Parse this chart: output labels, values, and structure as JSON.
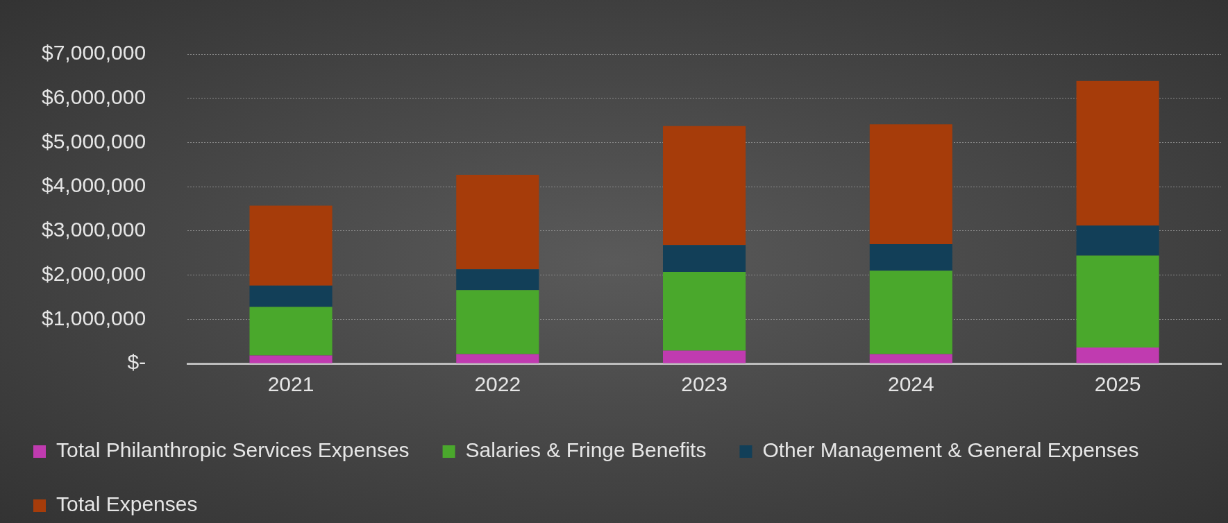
{
  "chart_data": {
    "type": "bar",
    "stacked": true,
    "categories": [
      "2021",
      "2022",
      "2023",
      "2024",
      "2025"
    ],
    "series": [
      {
        "name": "Total Philanthropic Services Expenses",
        "color": "#c03bb0",
        "values": [
          180000,
          210000,
          290000,
          210000,
          360000
        ]
      },
      {
        "name": "Salaries & Fringe Benefits",
        "color": "#4aa82c",
        "values": [
          1100000,
          1450000,
          1780000,
          1890000,
          2080000
        ]
      },
      {
        "name": "Other Management & General Expenses",
        "color": "#123f58",
        "values": [
          480000,
          470000,
          610000,
          600000,
          680000
        ]
      },
      {
        "name": "Total Expenses",
        "color": "#a63c0a",
        "values": [
          1810000,
          2140000,
          2690000,
          2710000,
          3270000
        ]
      }
    ],
    "ylim": [
      0,
      7000000
    ],
    "yticks": [
      {
        "value": 0,
        "label": "$-"
      },
      {
        "value": 1000000,
        "label": "$1,000,000"
      },
      {
        "value": 2000000,
        "label": "$2,000,000"
      },
      {
        "value": 3000000,
        "label": "$3,000,000"
      },
      {
        "value": 4000000,
        "label": "$4,000,000"
      },
      {
        "value": 5000000,
        "label": "$5,000,000"
      },
      {
        "value": 6000000,
        "label": "$6,000,000"
      },
      {
        "value": 7000000,
        "label": "$7,000,000"
      }
    ],
    "grid": "y",
    "legend": "bottom"
  }
}
